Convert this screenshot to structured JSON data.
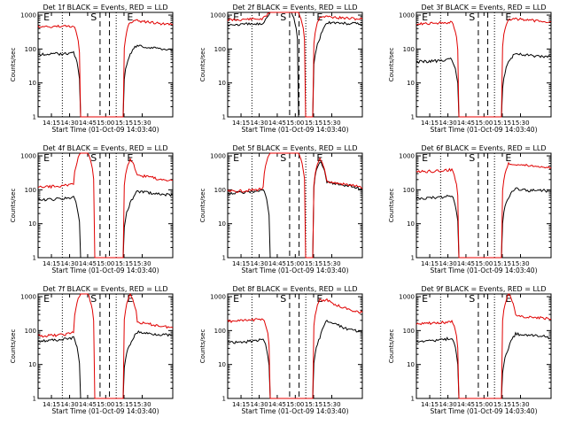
{
  "chart_data": [
    {
      "type": "line",
      "title": "Det 1f BLACK = Events, RED = LLD",
      "xlabel": "Start Time (01-Oct-09 14:03:40)",
      "ylabel": "Counts/sec",
      "yscale": "log",
      "ylim": [
        1,
        1200
      ],
      "x_ticks": [
        "14:15",
        "14:30",
        "14:45",
        "15:00",
        "15:15",
        "15:30"
      ],
      "y_ticks": [
        "1",
        "10",
        "100",
        "1000"
      ],
      "markers": [
        "E",
        "S",
        "E"
      ],
      "series": [
        {
          "color": "#000000",
          "values": [
            70,
            70,
            72,
            72,
            74,
            78,
            1,
            1,
            1,
            1,
            1,
            1,
            1,
            70,
            130,
            115,
            110,
            105,
            100,
            95
          ]
        },
        {
          "color": "#e00000",
          "values": [
            450,
            450,
            460,
            460,
            470,
            480,
            1,
            1,
            1,
            1,
            1,
            1,
            1,
            620,
            680,
            640,
            600,
            570,
            550,
            520
          ]
        }
      ]
    },
    {
      "type": "line",
      "title": "Det 2f BLACK = Events, RED = LLD",
      "xlabel": "Start Time (01-Oct-09 14:03:40)",
      "ylabel": "Counts/sec",
      "yscale": "log",
      "ylim": [
        1,
        1200
      ],
      "x_ticks": [
        "14:15",
        "14:30",
        "14:45",
        "15:00",
        "15:15",
        "15:30"
      ],
      "y_ticks": [
        "1",
        "10",
        "100",
        "1000"
      ],
      "markers": [
        "E",
        "S",
        "E"
      ],
      "series": [
        {
          "color": "#000000",
          "values": [
            520,
            520,
            530,
            540,
            540,
            560,
            1200,
            1200,
            1200,
            1200,
            1,
            1,
            1,
            200,
            600,
            600,
            580,
            560,
            560,
            540
          ]
        },
        {
          "color": "#e00000",
          "values": [
            720,
            720,
            740,
            760,
            760,
            780,
            1200,
            1200,
            1200,
            1200,
            1200,
            1,
            1,
            900,
            900,
            860,
            820,
            800,
            780,
            760
          ]
        }
      ]
    },
    {
      "type": "line",
      "title": "Det 3f BLACK = Events, RED = LLD",
      "xlabel": "Start Time (01-Oct-09 14:03:40)",
      "ylabel": "Counts/sec",
      "yscale": "log",
      "ylim": [
        1,
        1200
      ],
      "x_ticks": [
        "14:15",
        "14:30",
        "14:45",
        "15:00",
        "15:15",
        "15:30"
      ],
      "y_ticks": [
        "1",
        "10",
        "100",
        "1000"
      ],
      "markers": [
        "E",
        "S",
        "E"
      ],
      "series": [
        {
          "color": "#000000",
          "values": [
            42,
            42,
            44,
            44,
            46,
            50,
            1,
            1,
            1,
            1,
            1,
            1,
            1,
            40,
            75,
            70,
            65,
            62,
            60,
            58
          ]
        },
        {
          "color": "#e00000",
          "values": [
            560,
            560,
            580,
            580,
            600,
            620,
            1,
            1,
            1,
            1,
            1,
            1,
            1,
            750,
            780,
            740,
            700,
            680,
            660,
            640
          ]
        }
      ]
    },
    {
      "type": "line",
      "title": "Det 4f BLACK = Events, RED = LLD",
      "xlabel": "Start Time (01-Oct-09 14:03:40)",
      "ylabel": "Counts/sec",
      "yscale": "log",
      "ylim": [
        1,
        1200
      ],
      "x_ticks": [
        "14:15",
        "14:30",
        "14:45",
        "15:00",
        "15:15",
        "15:30"
      ],
      "y_ticks": [
        "1",
        "10",
        "100",
        "1000"
      ],
      "markers": [
        "E",
        "S",
        "E"
      ],
      "series": [
        {
          "color": "#000000",
          "values": [
            50,
            50,
            52,
            54,
            56,
            60,
            1,
            1,
            1,
            1,
            1,
            1,
            1,
            40,
            90,
            85,
            80,
            75,
            72,
            70
          ]
        },
        {
          "color": "#e00000",
          "values": [
            120,
            120,
            125,
            130,
            135,
            150,
            1200,
            1200,
            1,
            1,
            1,
            1,
            1,
            800,
            270,
            250,
            230,
            210,
            200,
            190
          ]
        }
      ]
    },
    {
      "type": "line",
      "title": "Det 5f BLACK = Events, RED = LLD",
      "xlabel": "Start Time (01-Oct-09 14:03:40)",
      "ylabel": "Counts/sec",
      "yscale": "log",
      "ylim": [
        1,
        1200
      ],
      "x_ticks": [
        "14:15",
        "14:30",
        "14:45",
        "15:00",
        "15:15",
        "15:30"
      ],
      "y_ticks": [
        "1",
        "10",
        "100",
        "1000"
      ],
      "markers": [
        "E",
        "S",
        "E"
      ],
      "series": [
        {
          "color": "#000000",
          "values": [
            80,
            80,
            84,
            86,
            90,
            100,
            1,
            1,
            1,
            1,
            1,
            1,
            1,
            700,
            170,
            150,
            140,
            135,
            120,
            100
          ]
        },
        {
          "color": "#e00000",
          "values": [
            90,
            90,
            92,
            96,
            100,
            110,
            1200,
            1200,
            1200,
            1200,
            1200,
            1,
            1,
            800,
            180,
            160,
            150,
            140,
            130,
            110
          ]
        }
      ]
    },
    {
      "type": "line",
      "title": "Det 6f BLACK = Events, RED = LLD",
      "xlabel": "Start Time (01-Oct-09 14:03:40)",
      "ylabel": "Counts/sec",
      "yscale": "log",
      "ylim": [
        1,
        1200
      ],
      "x_ticks": [
        "14:15",
        "14:30",
        "14:45",
        "15:00",
        "15:15",
        "15:30"
      ],
      "y_ticks": [
        "1",
        "10",
        "100",
        "1000"
      ],
      "markers": [
        "E",
        "S",
        "E"
      ],
      "series": [
        {
          "color": "#000000",
          "values": [
            56,
            56,
            58,
            60,
            62,
            68,
            1,
            1,
            1,
            1,
            1,
            1,
            1,
            60,
            110,
            100,
            95,
            100,
            95,
            88
          ]
        },
        {
          "color": "#e00000",
          "values": [
            340,
            340,
            350,
            360,
            370,
            400,
            1,
            1,
            1,
            1,
            1,
            1,
            1,
            600,
            580,
            540,
            520,
            500,
            480,
            450
          ]
        }
      ]
    },
    {
      "type": "line",
      "title": "Det 7f BLACK = Events, RED = LLD",
      "xlabel": "Start Time (01-Oct-09 14:03:40)",
      "ylabel": "Counts/sec",
      "yscale": "log",
      "ylim": [
        1,
        1200
      ],
      "x_ticks": [
        "14:15",
        "14:30",
        "14:45",
        "15:00",
        "15:15",
        "15:30"
      ],
      "y_ticks": [
        "1",
        "10",
        "100",
        "1000"
      ],
      "markers": [
        "E",
        "S",
        "E"
      ],
      "series": [
        {
          "color": "#000000",
          "values": [
            50,
            50,
            52,
            54,
            56,
            62,
            1,
            1,
            1,
            1,
            1,
            1,
            1,
            40,
            90,
            85,
            80,
            78,
            75,
            70
          ]
        },
        {
          "color": "#e00000",
          "values": [
            70,
            70,
            72,
            74,
            78,
            90,
            1200,
            1200,
            1,
            1,
            1,
            1,
            1,
            1200,
            180,
            160,
            150,
            140,
            130,
            120
          ]
        }
      ]
    },
    {
      "type": "line",
      "title": "Det 8f BLACK = Events, RED = LLD",
      "xlabel": "Start Time (01-Oct-09 14:03:40)",
      "ylabel": "Counts/sec",
      "yscale": "log",
      "ylim": [
        1,
        1200
      ],
      "x_ticks": [
        "14:15",
        "14:30",
        "14:45",
        "15:00",
        "15:15",
        "15:30"
      ],
      "y_ticks": [
        "1",
        "10",
        "100",
        "1000"
      ],
      "markers": [
        "E",
        "S",
        "E"
      ],
      "series": [
        {
          "color": "#000000",
          "values": [
            45,
            45,
            46,
            48,
            50,
            55,
            1,
            1,
            1,
            1,
            1,
            1,
            1,
            60,
            200,
            160,
            130,
            110,
            100,
            90
          ]
        },
        {
          "color": "#e00000",
          "values": [
            190,
            190,
            195,
            200,
            210,
            230,
            1,
            1,
            1,
            1,
            1,
            1,
            1,
            800,
            780,
            600,
            500,
            430,
            380,
            340
          ]
        }
      ]
    },
    {
      "type": "line",
      "title": "Det 9f BLACK = Events, RED = LLD",
      "xlabel": "Start Time (01-Oct-09 14:03:40)",
      "ylabel": "Counts/sec",
      "yscale": "log",
      "ylim": [
        1,
        1200
      ],
      "x_ticks": [
        "14:15",
        "14:30",
        "14:45",
        "15:00",
        "15:15",
        "15:30"
      ],
      "y_ticks": [
        "1",
        "10",
        "100",
        "1000"
      ],
      "markers": [
        "E",
        "S",
        "E"
      ],
      "series": [
        {
          "color": "#000000",
          "values": [
            50,
            50,
            52,
            52,
            55,
            60,
            1,
            1,
            1,
            1,
            1,
            1,
            1,
            30,
            80,
            75,
            72,
            70,
            68,
            60
          ]
        },
        {
          "color": "#e00000",
          "values": [
            160,
            160,
            165,
            170,
            175,
            190,
            1,
            1,
            1,
            1,
            1,
            1,
            1,
            1200,
            280,
            260,
            250,
            240,
            230,
            220
          ]
        }
      ]
    }
  ]
}
